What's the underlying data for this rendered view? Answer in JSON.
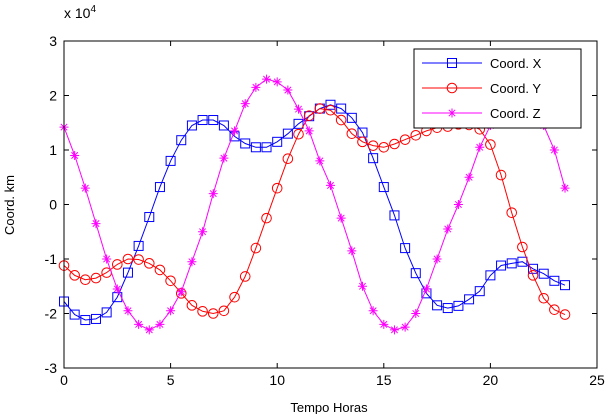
{
  "chart_data": {
    "type": "line",
    "xlabel": "Tempo Horas",
    "ylabel": "Coord. km",
    "y_exponent_label": "x 10",
    "y_exponent_power": "4",
    "xlim": [
      0,
      25
    ],
    "ylim": [
      -30000,
      30000
    ],
    "x_ticks": [
      0,
      5,
      10,
      15,
      20,
      25
    ],
    "y_ticks": [
      -30000,
      -20000,
      -10000,
      0,
      10000,
      20000,
      30000
    ],
    "x_tick_labels": [
      "0",
      "5",
      "10",
      "15",
      "20",
      "25"
    ],
    "y_tick_labels": [
      "-3",
      "-2",
      "-1",
      "0",
      "1",
      "2",
      "3"
    ],
    "grid": false,
    "legend_position": "top-right",
    "x": [
      0,
      0.5,
      1,
      1.5,
      2,
      2.5,
      3,
      3.5,
      4,
      4.5,
      5,
      5.5,
      6,
      6.5,
      7,
      7.5,
      8,
      8.5,
      9,
      9.5,
      10,
      10.5,
      11,
      11.5,
      12,
      12.5,
      13,
      13.5,
      14,
      14.5,
      15,
      15.5,
      16,
      16.5,
      17,
      17.5,
      18,
      18.5,
      19,
      19.5,
      20,
      20.5,
      21,
      21.5,
      22,
      22.5,
      23,
      23.5
    ],
    "series": [
      {
        "name": "Coord. X",
        "color": "#0000ff",
        "marker": "square",
        "values": [
          -17800,
          -20200,
          -21200,
          -21000,
          -19800,
          -17000,
          -12500,
          -7600,
          -2300,
          3200,
          8000,
          11800,
          14500,
          15500,
          15500,
          14500,
          12500,
          11200,
          10500,
          10500,
          11500,
          13000,
          14800,
          16200,
          17600,
          18300,
          17600,
          15900,
          13200,
          8500,
          3200,
          -2000,
          -8000,
          -12600,
          -16300,
          -18500,
          -19000,
          -18600,
          -17400,
          -15900,
          -13000,
          -11200,
          -10800,
          -10500,
          -11800,
          -12700,
          -14000,
          -14800
        ]
      },
      {
        "name": "Coord. Y",
        "color": "#ff0000",
        "marker": "circle",
        "values": [
          -11200,
          -13000,
          -13800,
          -13500,
          -12500,
          -11000,
          -10000,
          -10100,
          -10800,
          -12000,
          -14000,
          -16300,
          -18500,
          -19600,
          -20000,
          -19500,
          -17000,
          -13200,
          -8000,
          -2500,
          3000,
          8400,
          12900,
          16300,
          17600,
          17300,
          15500,
          13000,
          11500,
          10800,
          10500,
          11100,
          11900,
          12700,
          13500,
          14100,
          14300,
          14700,
          14600,
          13800,
          11000,
          5400,
          -1500,
          -7800,
          -13000,
          -17200,
          -19300,
          -20200
        ]
      },
      {
        "name": "Coord. Z",
        "color": "#ff00ff",
        "marker": "star",
        "values": [
          14200,
          9000,
          3000,
          -3500,
          -10000,
          -15500,
          -19500,
          -22000,
          -23000,
          -22000,
          -19500,
          -16000,
          -10500,
          -5000,
          2000,
          8500,
          13500,
          18500,
          21500,
          23000,
          22500,
          21000,
          17500,
          13500,
          8000,
          3500,
          -2500,
          -8500,
          -15000,
          -19500,
          -22000,
          -23000,
          -22500,
          -20000,
          -15500,
          -10000,
          -4500,
          0,
          5000,
          10500,
          14500,
          19000,
          21000,
          21500,
          19000,
          14500,
          10000,
          3000
        ]
      }
    ]
  }
}
